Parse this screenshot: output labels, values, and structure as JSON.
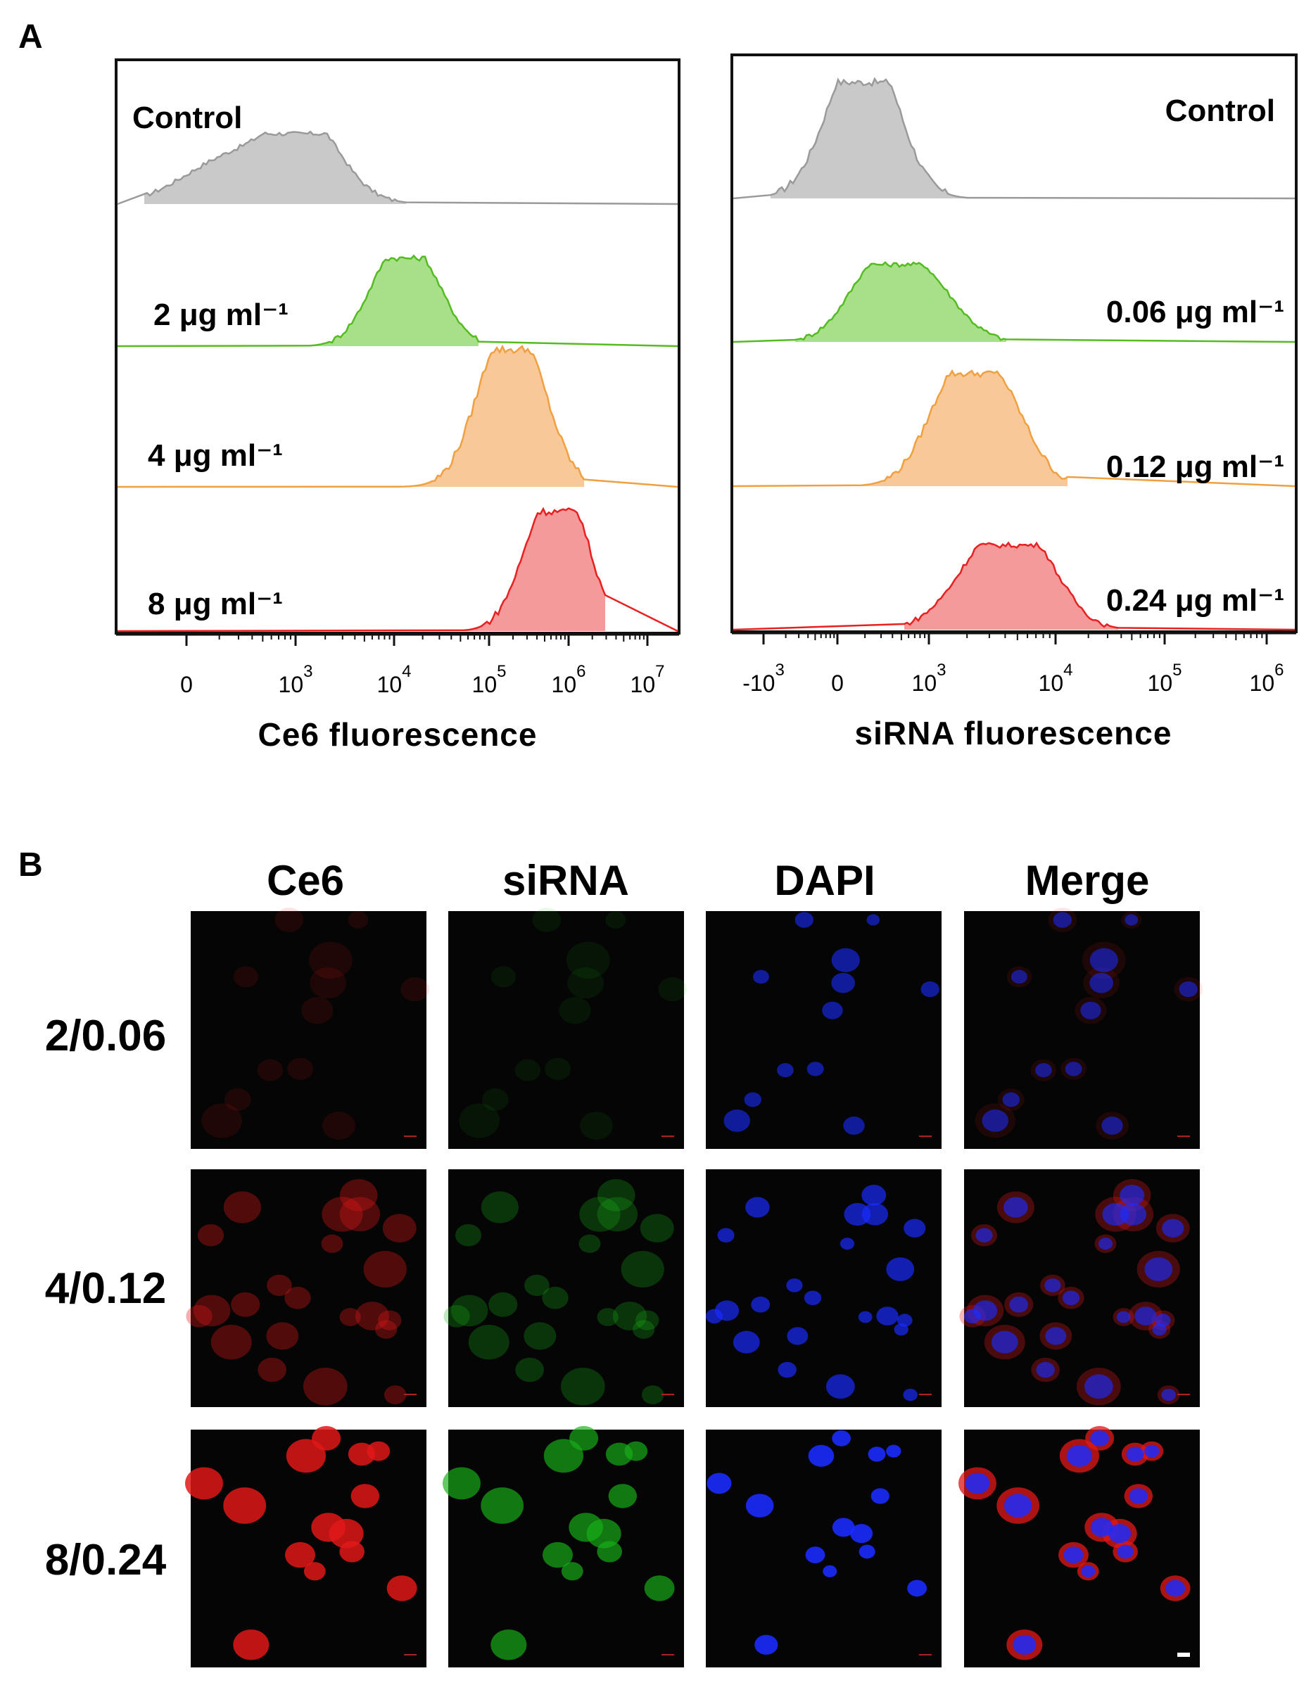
{
  "panel_a": {
    "letter": "A",
    "left": {
      "xlabel": "Ce6 fluorescence",
      "tick_labels": [
        {
          "base": "0",
          "exp": ""
        },
        {
          "base": "10",
          "exp": "3"
        },
        {
          "base": "10",
          "exp": "4"
        },
        {
          "base": "10",
          "exp": "5"
        },
        {
          "base": "10",
          "exp": "6"
        },
        {
          "base": "10",
          "exp": "7"
        }
      ],
      "traces": [
        {
          "label": "Control",
          "color": "#9a9a9a",
          "fill": "#c9c9c9"
        },
        {
          "label": "2 μg ml⁻¹",
          "color": "#55bb22",
          "fill": "#a8e08a"
        },
        {
          "label": "4 μg ml⁻¹",
          "color": "#f0a040",
          "fill": "#f8c898"
        },
        {
          "label": "8 μg ml⁻¹",
          "color": "#e82020",
          "fill": "#f49a9a"
        }
      ]
    },
    "right": {
      "xlabel": "siRNA fluorescence",
      "tick_labels": [
        {
          "base": "-10",
          "exp": "3"
        },
        {
          "base": "0",
          "exp": ""
        },
        {
          "base": "10",
          "exp": "3"
        },
        {
          "base": "10",
          "exp": "4"
        },
        {
          "base": "10",
          "exp": "5"
        },
        {
          "base": "10",
          "exp": "6"
        }
      ],
      "traces": [
        {
          "label": "Control",
          "color": "#9a9a9a",
          "fill": "#c9c9c9"
        },
        {
          "label": "0.06 μg ml⁻¹",
          "color": "#55bb22",
          "fill": "#a8e08a"
        },
        {
          "label": "0.12 μg ml⁻¹",
          "color": "#f0a040",
          "fill": "#f8c898"
        },
        {
          "label": "0.24 μg ml⁻¹",
          "color": "#e82020",
          "fill": "#f49a9a"
        }
      ]
    }
  },
  "panel_b": {
    "letter": "B",
    "columns": [
      "Ce6",
      "siRNA",
      "DAPI",
      "Merge"
    ],
    "rows": [
      "2/0.06",
      "4/0.12",
      "8/0.24"
    ]
  },
  "chart_data": [
    {
      "type": "area",
      "xlabel": "Ce6 fluorescence",
      "x_scale": "biexponential",
      "x_ticks": [
        "0",
        "10^3",
        "10^4",
        "10^5",
        "10^6",
        "10^7"
      ],
      "series": [
        {
          "name": "Control",
          "peak_x": 1000,
          "range": [
            -400,
            20000
          ]
        },
        {
          "name": "2 μg ml⁻¹",
          "peak_x": 20000,
          "range": [
            2000,
            100000
          ]
        },
        {
          "name": "4 μg ml⁻¹",
          "peak_x": 150000,
          "range": [
            30000,
            800000
          ]
        },
        {
          "name": "8 μg ml⁻¹",
          "peak_x": 600000,
          "range": [
            80000,
            3000000
          ]
        }
      ]
    },
    {
      "type": "area",
      "xlabel": "siRNA fluorescence",
      "x_scale": "biexponential",
      "x_ticks": [
        "-10^3",
        "0",
        "10^3",
        "10^4",
        "10^5",
        "10^6"
      ],
      "series": [
        {
          "name": "Control",
          "peak_x": 200,
          "range": [
            -600,
            1500
          ]
        },
        {
          "name": "0.06 μg ml⁻¹",
          "peak_x": 500,
          "range": [
            -400,
            4000
          ]
        },
        {
          "name": "0.12 μg ml⁻¹",
          "peak_x": 2000,
          "range": [
            200,
            15000
          ]
        },
        {
          "name": "0.24 μg ml⁻¹",
          "peak_x": 3500,
          "range": [
            500,
            40000
          ]
        }
      ]
    }
  ]
}
